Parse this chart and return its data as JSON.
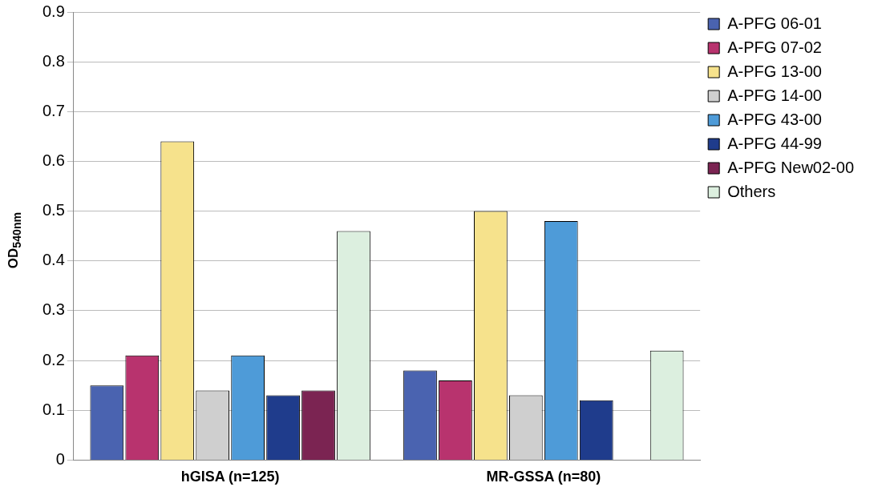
{
  "chart_data": {
    "type": "bar",
    "ylabel": "OD$_{540nm}$",
    "categories": [
      "hGISA (n=125)",
      "MR-GSSA (n=80)"
    ],
    "series": [
      {
        "name": "A-PFG 06-01",
        "color": "#4a63b0",
        "values": [
          0.15,
          0.18
        ]
      },
      {
        "name": "A-PFG 07-02",
        "color": "#b8336e",
        "values": [
          0.21,
          0.16
        ]
      },
      {
        "name": "A-PFG 13-00",
        "color": "#f6e28c",
        "values": [
          0.64,
          0.5
        ]
      },
      {
        "name": "A-PFG 14-00",
        "color": "#cfcfcf",
        "values": [
          0.14,
          0.13
        ]
      },
      {
        "name": "A-PFG 43-00",
        "color": "#4e9bd8",
        "values": [
          0.21,
          0.48
        ]
      },
      {
        "name": "A-PFG 44-99",
        "color": "#1f3c8c",
        "values": [
          0.13,
          0.12
        ]
      },
      {
        "name": "A-PFG New02-00",
        "color": "#7b2452",
        "values": [
          0.14,
          null
        ]
      },
      {
        "name": "Others",
        "color": "#dcefdf",
        "values": [
          0.46,
          0.22
        ]
      }
    ],
    "ylim": [
      0,
      0.9
    ],
    "yticks": [
      0,
      0.1,
      0.2,
      0.3,
      0.4,
      0.5,
      0.6,
      0.7,
      0.8,
      0.9
    ],
    "grid": "y",
    "legend": "top right"
  }
}
